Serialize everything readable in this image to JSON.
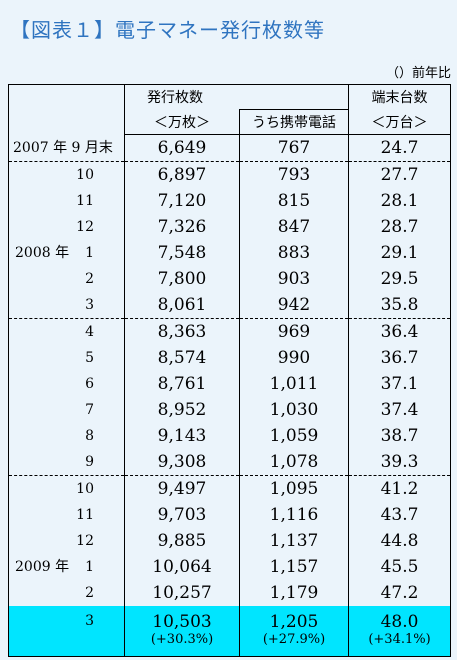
{
  "title": "【図表１】電子マネー発行枚数等",
  "note": "（）前年比",
  "header": {
    "issued": "発行枚数",
    "issued_unit": "＜万枚＞",
    "mobile": "うち携帯電話",
    "terminals": "端末台数",
    "terminals_unit": "＜万台＞"
  },
  "rows": [
    {
      "year": "",
      "label": "2007 年 9 月末",
      "issued": "6,649",
      "mobile": "767",
      "terminals": "24.7"
    },
    {
      "year": "",
      "label": "10",
      "issued": "6,897",
      "mobile": "793",
      "terminals": "27.7"
    },
    {
      "year": "",
      "label": "11",
      "issued": "7,120",
      "mobile": "815",
      "terminals": "28.1"
    },
    {
      "year": "",
      "label": "12",
      "issued": "7,326",
      "mobile": "847",
      "terminals": "28.7"
    },
    {
      "year": "2008 年",
      "label": "1",
      "issued": "7,548",
      "mobile": "883",
      "terminals": "29.1"
    },
    {
      "year": "",
      "label": "2",
      "issued": "7,800",
      "mobile": "903",
      "terminals": "29.5"
    },
    {
      "year": "",
      "label": "3",
      "issued": "8,061",
      "mobile": "942",
      "terminals": "35.8"
    },
    {
      "year": "",
      "label": "4",
      "issued": "8,363",
      "mobile": "969",
      "terminals": "36.4"
    },
    {
      "year": "",
      "label": "5",
      "issued": "8,574",
      "mobile": "990",
      "terminals": "36.7"
    },
    {
      "year": "",
      "label": "6",
      "issued": "8,761",
      "mobile": "1,011",
      "terminals": "37.1"
    },
    {
      "year": "",
      "label": "7",
      "issued": "8,952",
      "mobile": "1,030",
      "terminals": "37.4"
    },
    {
      "year": "",
      "label": "8",
      "issued": "9,143",
      "mobile": "1,059",
      "terminals": "38.7"
    },
    {
      "year": "",
      "label": "9",
      "issued": "9,308",
      "mobile": "1,078",
      "terminals": "39.3"
    },
    {
      "year": "",
      "label": "10",
      "issued": "9,497",
      "mobile": "1,095",
      "terminals": "41.2"
    },
    {
      "year": "",
      "label": "11",
      "issued": "9,703",
      "mobile": "1,116",
      "terminals": "43.7"
    },
    {
      "year": "",
      "label": "12",
      "issued": "9,885",
      "mobile": "1,137",
      "terminals": "44.8"
    },
    {
      "year": "2009 年",
      "label": "1",
      "issued": "10,064",
      "mobile": "1,157",
      "terminals": "45.5"
    },
    {
      "year": "",
      "label": "2",
      "issued": "10,257",
      "mobile": "1,179",
      "terminals": "47.2"
    }
  ],
  "last_row": {
    "label": "3",
    "issued": "10,503",
    "issued_yoy": "(+30.3%)",
    "mobile": "1,205",
    "mobile_yoy": "(+27.9%)",
    "terminals": "48.0",
    "terminals_yoy": "(+34.1%)"
  }
}
